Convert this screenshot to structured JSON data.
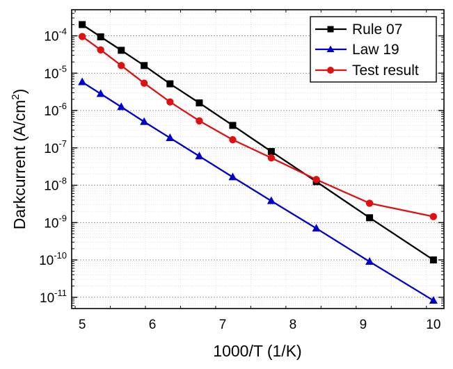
{
  "chart_data": {
    "type": "line",
    "xlabel": "1000/T (1/K)",
    "ylabel_main": "Darkcurrent (A/cm",
    "ylabel_sup": "2",
    "ylabel_close": ")",
    "xlim": [
      4.85,
      10.15
    ],
    "ylim": [
      5e-12,
      0.0005
    ],
    "yscale": "log",
    "grid": true,
    "legend_position": "top-right",
    "x_ticks": [
      {
        "value": 5,
        "label": "5"
      },
      {
        "value": 6,
        "label": "6"
      },
      {
        "value": 7,
        "label": "7"
      },
      {
        "value": 8,
        "label": "8"
      },
      {
        "value": 9,
        "label": "9"
      },
      {
        "value": 10,
        "label": "10"
      }
    ],
    "y_ticks": [
      {
        "exp": -4,
        "base": "10",
        "sup": "-4"
      },
      {
        "exp": -5,
        "base": "10",
        "sup": "-5"
      },
      {
        "exp": -6,
        "base": "10",
        "sup": "-6"
      },
      {
        "exp": -7,
        "base": "10",
        "sup": "-7"
      },
      {
        "exp": -8,
        "base": "10",
        "sup": "-8"
      },
      {
        "exp": -9,
        "base": "10",
        "sup": "-9"
      },
      {
        "exp": -10,
        "base": "10",
        "sup": "-10"
      },
      {
        "exp": -11,
        "base": "10",
        "sup": "-11"
      }
    ],
    "series": [
      {
        "name": "Rule 07",
        "color": "#000000",
        "marker": "square",
        "x": [
          5.0,
          5.263,
          5.556,
          5.882,
          6.25,
          6.667,
          7.143,
          7.692,
          8.333,
          9.091,
          10.0
        ],
        "y": [
          0.0002,
          9.4e-05,
          4.1e-05,
          1.6e-05,
          5.2e-06,
          1.6e-06,
          4e-07,
          8e-08,
          1.25e-08,
          1.35e-09,
          1e-10
        ]
      },
      {
        "name": "Law 19",
        "color": "#0000cc",
        "marker": "triangle",
        "x": [
          5.0,
          5.263,
          5.556,
          5.882,
          6.25,
          6.667,
          7.143,
          7.692,
          8.333,
          9.091,
          10.0
        ],
        "y": [
          5.8e-06,
          2.8e-06,
          1.25e-06,
          5e-07,
          1.85e-07,
          6e-08,
          1.65e-08,
          3.8e-09,
          7e-10,
          9e-11,
          8.2e-12
        ]
      },
      {
        "name": "Test result",
        "color": "#e01010",
        "marker": "circle",
        "x": [
          5.0,
          5.263,
          5.556,
          5.882,
          6.25,
          6.667,
          7.143,
          7.692,
          8.333,
          9.091,
          10.0
        ],
        "y": [
          9.6e-05,
          4.2e-05,
          1.6e-05,
          5.4e-06,
          1.7e-06,
          5.3e-07,
          1.65e-07,
          5.4e-08,
          1.42e-08,
          3.3e-09,
          1.45e-09
        ]
      }
    ]
  }
}
